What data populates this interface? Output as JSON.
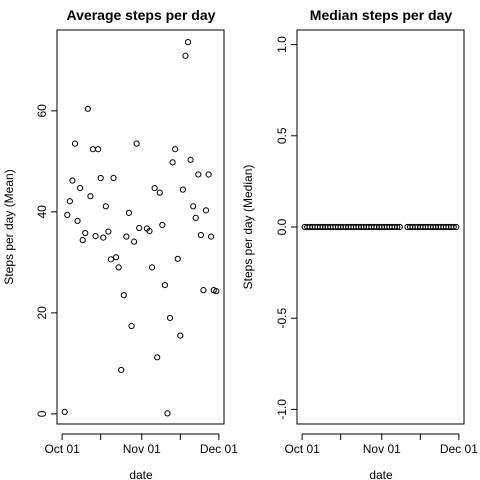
{
  "chart_data": [
    {
      "type": "scatter",
      "title": "Average steps per day",
      "xlabel": "date",
      "ylabel": "Steps per day (Mean)",
      "x_tick_labels": [
        "Oct 01",
        "Nov 01",
        "Dec 01"
      ],
      "x_tick_days": [
        0,
        31,
        61
      ],
      "x_minor_ticks": [
        15,
        46
      ],
      "xlim": [
        -2,
        63
      ],
      "y_ticks": [
        0,
        20,
        40,
        60
      ],
      "ylim": [
        -2,
        76
      ],
      "x": [
        1,
        2,
        3,
        4,
        5,
        6,
        7,
        8,
        9,
        10,
        11,
        12,
        13,
        14,
        15,
        16,
        17,
        18,
        19,
        20,
        21,
        22,
        23,
        24,
        25,
        26,
        27,
        28,
        29,
        30,
        33,
        34,
        35,
        36,
        37,
        38,
        39,
        40,
        41,
        42,
        43,
        44,
        45,
        46,
        47,
        48,
        49,
        50,
        51,
        52,
        53,
        54,
        55,
        56,
        57,
        58,
        59,
        60
      ],
      "y": [
        0.4,
        39.4,
        42.1,
        46.2,
        53.5,
        38.2,
        44.7,
        34.4,
        35.8,
        60.4,
        43.1,
        52.4,
        35.2,
        52.4,
        46.7,
        34.9,
        41.1,
        36.1,
        30.6,
        46.7,
        31.0,
        29.0,
        8.7,
        23.5,
        35.1,
        39.8,
        17.4,
        34.1,
        53.5,
        36.8,
        36.7,
        36.2,
        29.0,
        44.7,
        11.2,
        43.8,
        37.4,
        25.5,
        0.1,
        19.0,
        49.8,
        52.4,
        30.7,
        15.5,
        44.4,
        70.9,
        73.6,
        50.3,
        41.1,
        38.8,
        47.4,
        35.4,
        24.5,
        40.3,
        47.4,
        35.1,
        24.5,
        24.3
      ],
      "grid": false,
      "legend": "none"
    },
    {
      "type": "scatter",
      "title": "Median steps per day",
      "xlabel": "date",
      "ylabel": "Steps per day (Median)",
      "x_tick_labels": [
        "Oct 01",
        "Nov 01",
        "Dec 01"
      ],
      "x_tick_days": [
        0,
        31,
        61
      ],
      "x_minor_ticks": [
        15,
        46
      ],
      "xlim": [
        -2,
        63
      ],
      "y_ticks": [
        -1.0,
        -0.5,
        0.0,
        0.5,
        1.0
      ],
      "y_tick_labels": [
        "-1.0",
        "-0.5",
        "0.0",
        "0.5",
        "1.0"
      ],
      "ylim": [
        -1.08,
        1.08
      ],
      "x": [
        1,
        2,
        3,
        4,
        5,
        6,
        7,
        8,
        9,
        10,
        11,
        12,
        13,
        14,
        15,
        16,
        17,
        18,
        19,
        20,
        21,
        22,
        23,
        24,
        25,
        26,
        27,
        28,
        29,
        30,
        31,
        32,
        33,
        34,
        35,
        36,
        37,
        38,
        41,
        42,
        43,
        44,
        45,
        46,
        47,
        48,
        49,
        50,
        51,
        52,
        53,
        54,
        55,
        56,
        57,
        58,
        59,
        60
      ],
      "y": [
        0,
        0,
        0,
        0,
        0,
        0,
        0,
        0,
        0,
        0,
        0,
        0,
        0,
        0,
        0,
        0,
        0,
        0,
        0,
        0,
        0,
        0,
        0,
        0,
        0,
        0,
        0,
        0,
        0,
        0,
        0,
        0,
        0,
        0,
        0,
        0,
        0,
        0,
        0,
        0,
        0,
        0,
        0,
        0,
        0,
        0,
        0,
        0,
        0,
        0,
        0,
        0,
        0,
        0,
        0,
        0,
        0,
        0
      ],
      "grid": false,
      "legend": "none"
    }
  ]
}
